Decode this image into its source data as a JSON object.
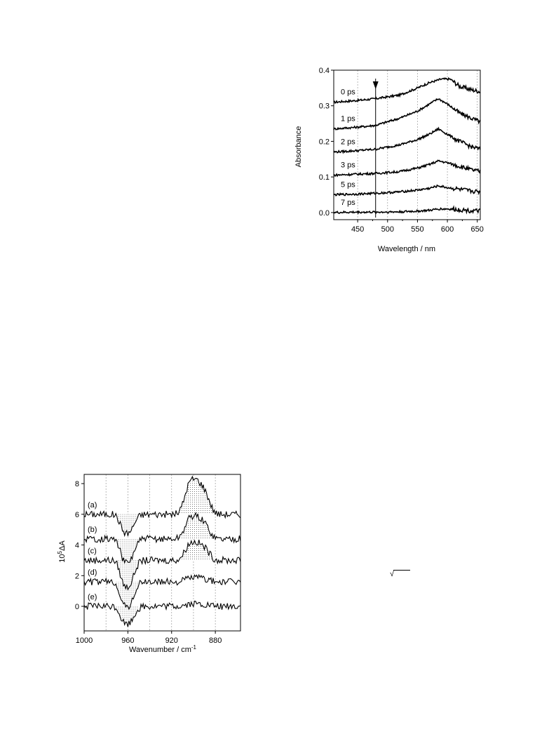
{
  "charts": [
    {
      "type": "line",
      "ylabel": "Absorbance",
      "xlabel": "Wavelength / nm",
      "xlim": [
        410,
        655
      ],
      "ylim": [
        -0.02,
        0.4
      ],
      "xticks": [
        450,
        500,
        550,
        600,
        650
      ],
      "yticks": [
        "0.0",
        "0.1",
        "0.2",
        "0.3",
        "0.4"
      ],
      "grid_x": [
        450,
        500,
        550,
        600,
        650
      ],
      "arrow_x": 480,
      "series": [
        {
          "name": "0 ps",
          "baseline": 0.31,
          "wave": [
            [
              410,
              0
            ],
            [
              450,
              0.005
            ],
            [
              480,
              0.01
            ],
            [
              520,
              0.02
            ],
            [
              550,
              0.04
            ],
            [
              570,
              0.055
            ],
            [
              590,
              0.065
            ],
            [
              605,
              0.065
            ],
            [
              620,
              0.045
            ],
            [
              640,
              0.035
            ],
            [
              655,
              0.03
            ]
          ]
        },
        {
          "name": "1 ps",
          "baseline": 0.235,
          "wave": [
            [
              410,
              0
            ],
            [
              450,
              0.005
            ],
            [
              480,
              0.01
            ],
            [
              520,
              0.03
            ],
            [
              550,
              0.05
            ],
            [
              570,
              0.07
            ],
            [
              585,
              0.085
            ],
            [
              600,
              0.07
            ],
            [
              620,
              0.045
            ],
            [
              640,
              0.03
            ],
            [
              655,
              0.02
            ]
          ]
        },
        {
          "name": "2 ps",
          "baseline": 0.17,
          "wave": [
            [
              410,
              0
            ],
            [
              450,
              0.004
            ],
            [
              480,
              0.008
            ],
            [
              520,
              0.02
            ],
            [
              550,
              0.035
            ],
            [
              570,
              0.05
            ],
            [
              585,
              0.065
            ],
            [
              600,
              0.05
            ],
            [
              620,
              0.03
            ],
            [
              640,
              0.015
            ],
            [
              655,
              0.008
            ]
          ]
        },
        {
          "name": "3 ps",
          "baseline": 0.105,
          "wave": [
            [
              410,
              0
            ],
            [
              450,
              0.003
            ],
            [
              480,
              0.005
            ],
            [
              520,
              0.01
            ],
            [
              550,
              0.02
            ],
            [
              570,
              0.03
            ],
            [
              585,
              0.04
            ],
            [
              600,
              0.035
            ],
            [
              620,
              0.025
            ],
            [
              640,
              0.015
            ],
            [
              655,
              0.01
            ]
          ]
        },
        {
          "name": "5 ps",
          "baseline": 0.05,
          "wave": [
            [
              410,
              0
            ],
            [
              450,
              0.002
            ],
            [
              480,
              0.004
            ],
            [
              520,
              0.008
            ],
            [
              550,
              0.013
            ],
            [
              570,
              0.018
            ],
            [
              585,
              0.025
            ],
            [
              600,
              0.02
            ],
            [
              620,
              0.015
            ],
            [
              640,
              0.01
            ],
            [
              655,
              0.008
            ]
          ]
        },
        {
          "name": "7 ps",
          "baseline": 0.0,
          "wave": [
            [
              410,
              0
            ],
            [
              450,
              0.001
            ],
            [
              480,
              0.001
            ],
            [
              520,
              0.002
            ],
            [
              550,
              0.004
            ],
            [
              570,
              0.006
            ],
            [
              585,
              0.01
            ],
            [
              600,
              0.01
            ],
            [
              620,
              0.008
            ],
            [
              640,
              0.005
            ],
            [
              655,
              0.004
            ]
          ]
        }
      ]
    },
    {
      "type": "line",
      "ylabel": "10^5ΔA",
      "ylabel_sup": "5",
      "ylabel_pre": "10",
      "ylabel_post": "ΔA",
      "xlabel": "Wavenumber / cm",
      "xlabel_sup": "-1",
      "xlim": [
        1000,
        857
      ],
      "ylim": [
        -1.6,
        8.6
      ],
      "xticks": [
        "1000",
        "960",
        "920",
        "880"
      ],
      "xtick_values": [
        1000,
        960,
        920,
        880
      ],
      "yticks": [
        "0",
        "2",
        "4",
        "6",
        "8"
      ],
      "grid_x": [
        980,
        960,
        940,
        920,
        900,
        880
      ],
      "series": [
        {
          "name": "(a)",
          "baseline": 6.0,
          "neg_depth": 1.5,
          "pos_height": 2.3
        },
        {
          "name": "(b)",
          "baseline": 4.4,
          "neg_depth": 1.9,
          "pos_height": 1.5
        },
        {
          "name": "(c)",
          "baseline": 3.0,
          "neg_depth": 2.1,
          "pos_height": 1.2
        },
        {
          "name": "(d)",
          "baseline": 1.6,
          "neg_depth": 2.0,
          "pos_height": 0.3
        },
        {
          "name": "(e)",
          "baseline": 0.0,
          "neg_depth": 1.4,
          "pos_height": 0.15
        }
      ]
    }
  ],
  "stray_text": "√"
}
